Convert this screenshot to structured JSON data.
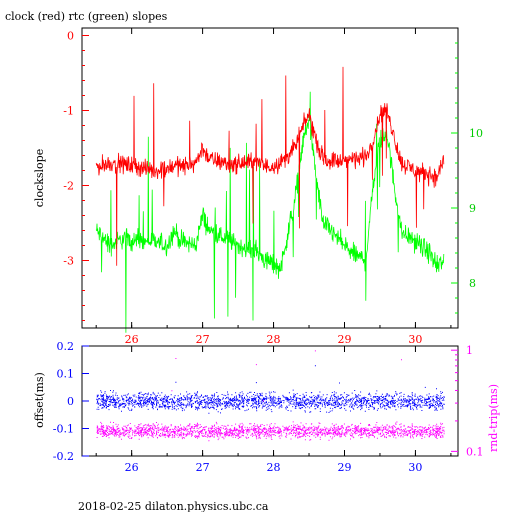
{
  "title": "clock (red) rtc (green) slopes",
  "footer": "2018-02-25  dilaton.physics.ubc.ca",
  "chart_data": [
    {
      "type": "line",
      "name": "slopes",
      "xlim": [
        25.3,
        30.6
      ],
      "x_ticks": [
        "26",
        "27",
        "28",
        "29",
        "30"
      ],
      "x_tick_values": [
        26,
        27,
        28,
        29,
        30
      ],
      "ylabel": "clockslope",
      "ylim": [
        -3.9,
        0.1
      ],
      "y_ticks": [
        "0",
        "-1",
        "-2",
        "-3"
      ],
      "y_tick_values": [
        0,
        -1,
        -2,
        -3
      ],
      "y2lim": [
        7.4,
        11.4
      ],
      "y2_ticks": [
        "10",
        "9",
        "8"
      ],
      "y2_tick_values": [
        10,
        9,
        8
      ],
      "series": [
        {
          "label": "clock",
          "color": "#ff0000",
          "axis": "left",
          "x": [
            25.5,
            25.7,
            25.9,
            26.1,
            26.3,
            26.5,
            26.6,
            26.7,
            26.9,
            27.0,
            27.1,
            27.3,
            27.5,
            27.7,
            27.9,
            28.1,
            28.3,
            28.4,
            28.5,
            28.6,
            28.7,
            28.9,
            29.1,
            29.3,
            29.4,
            29.5,
            29.6,
            29.7,
            29.8,
            30.0,
            30.2,
            30.3,
            30.4
          ],
          "y": [
            -1.75,
            -1.7,
            -1.72,
            -1.75,
            -1.8,
            -1.78,
            -1.72,
            -1.75,
            -1.7,
            -1.5,
            -1.65,
            -1.7,
            -1.72,
            -1.68,
            -1.75,
            -1.7,
            -1.5,
            -1.25,
            -1.05,
            -1.4,
            -1.65,
            -1.68,
            -1.65,
            -1.62,
            -1.4,
            -1.05,
            -1.0,
            -1.35,
            -1.7,
            -1.8,
            -1.85,
            -1.9,
            -1.65
          ]
        },
        {
          "label": "rtc",
          "color": "#00ff00",
          "axis": "right",
          "x": [
            25.5,
            25.7,
            25.9,
            26.1,
            26.3,
            26.5,
            26.6,
            26.7,
            26.9,
            27.0,
            27.1,
            27.3,
            27.5,
            27.7,
            27.9,
            28.1,
            28.3,
            28.4,
            28.5,
            28.6,
            28.7,
            28.9,
            29.1,
            29.3,
            29.4,
            29.5,
            29.6,
            29.7,
            29.8,
            30.0,
            30.2,
            30.3,
            30.4
          ],
          "y": [
            8.7,
            8.5,
            8.6,
            8.55,
            8.55,
            8.5,
            8.7,
            8.55,
            8.5,
            8.9,
            8.7,
            8.6,
            8.5,
            8.45,
            8.3,
            8.2,
            9.1,
            9.8,
            10.2,
            9.4,
            8.8,
            8.6,
            8.4,
            8.3,
            9.3,
            9.9,
            10.0,
            9.3,
            8.7,
            8.55,
            8.4,
            8.2,
            8.3
          ]
        }
      ]
    },
    {
      "type": "scatter",
      "name": "offset",
      "xlim": [
        25.3,
        30.6
      ],
      "x_ticks": [
        "26",
        "27",
        "28",
        "29",
        "30"
      ],
      "x_tick_values": [
        26,
        27,
        28,
        29,
        30
      ],
      "ylabel": "offset(ms)",
      "ylim": [
        -0.2,
        0.2
      ],
      "y_ticks": [
        "0.2",
        "0.1",
        "0",
        "-0.1",
        "-0.2"
      ],
      "y_tick_values": [
        0.2,
        0.1,
        0,
        -0.1,
        -0.2
      ],
      "y2label": "rnd-trip(ms)",
      "y2_scale": "log",
      "y2lim": [
        0.09,
        1.1
      ],
      "y2_ticks": [
        "1",
        "0.1"
      ],
      "y2_tick_values": [
        1,
        0.1
      ],
      "series": [
        {
          "label": "offset",
          "color": "#0000ff",
          "axis": "left",
          "x_range": [
            25.5,
            30.4
          ],
          "y_center": 0.0,
          "y_spread": 0.045
        },
        {
          "label": "rnd-trip",
          "color": "#ff00ff",
          "axis": "right",
          "x_range": [
            25.5,
            30.4
          ],
          "y_center": 0.16,
          "y_spread": 0.04
        }
      ]
    }
  ]
}
